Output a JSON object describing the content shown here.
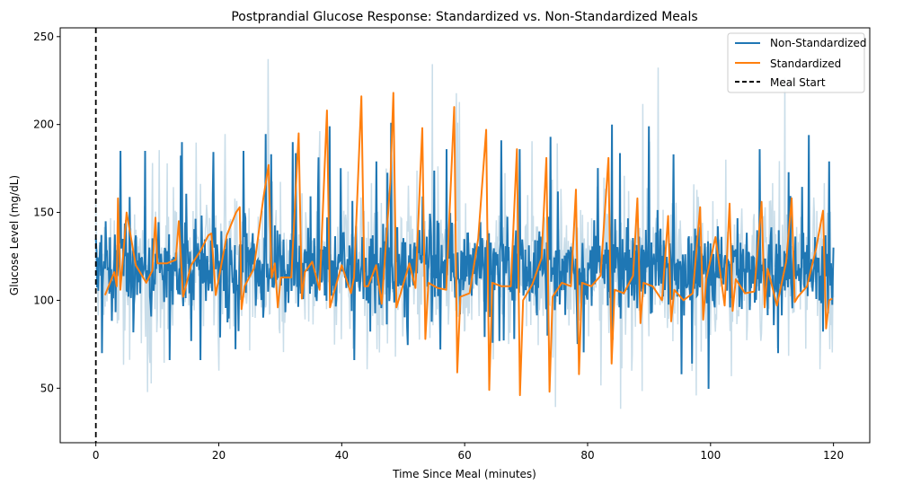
{
  "chart_data": {
    "type": "line",
    "title": "Postprandial Glucose Response: Standardized vs. Non-Standardized Meals",
    "xlabel": "Time Since Meal (minutes)",
    "ylabel": "Glucose Level (mg/dL)",
    "xlim": [
      -5.8,
      125.9
    ],
    "ylim": [
      19,
      255
    ],
    "xticks": [
      0,
      20,
      40,
      60,
      80,
      100,
      120
    ],
    "yticks": [
      50,
      100,
      150,
      200,
      250
    ],
    "legend_position": "top-right",
    "grid": false,
    "meal_start": {
      "name": "Meal Start",
      "x": 0,
      "color": "#000000",
      "dash": "dashed"
    },
    "series": [
      {
        "name": "Non-Standardized",
        "color": "#1f77b4",
        "light_color": "#c9dde9",
        "x_range": [
          0,
          120
        ],
        "sample_count": 1200,
        "typical_range": [
          88,
          150
        ],
        "spikes": [
          {
            "x": 4,
            "y": 185
          },
          {
            "x": 8,
            "y": 185
          },
          {
            "x": 14,
            "y": 190
          },
          {
            "x": 19,
            "y": 160
          },
          {
            "x": 24,
            "y": 185
          },
          {
            "x": 32,
            "y": 190
          },
          {
            "x": 38,
            "y": 199
          },
          {
            "x": 48,
            "y": 201
          },
          {
            "x": 57,
            "y": 186
          },
          {
            "x": 66,
            "y": 191
          },
          {
            "x": 69,
            "y": 186
          },
          {
            "x": 74,
            "y": 193
          },
          {
            "x": 84,
            "y": 200
          },
          {
            "x": 90,
            "y": 199
          },
          {
            "x": 94,
            "y": 183
          },
          {
            "x": 108,
            "y": 186
          },
          {
            "x": 116,
            "y": 194
          },
          {
            "x": 1,
            "y": 70
          },
          {
            "x": 12,
            "y": 66
          },
          {
            "x": 17,
            "y": 66
          },
          {
            "x": 42,
            "y": 66
          },
          {
            "x": 56,
            "y": 72
          },
          {
            "x": 97,
            "y": 64
          },
          {
            "x": 111,
            "y": 70
          }
        ]
      },
      {
        "name": "Standardized",
        "color": "#ff7f0e",
        "points": [
          [
            1.5,
            103
          ],
          [
            3.0,
            116
          ],
          [
            3.4,
            108
          ],
          [
            3.6,
            158
          ],
          [
            4.0,
            106
          ],
          [
            5.0,
            150
          ],
          [
            6.5,
            120
          ],
          [
            8.2,
            110
          ],
          [
            9.2,
            117
          ],
          [
            9.7,
            147
          ],
          [
            10.0,
            121
          ],
          [
            11.5,
            121
          ],
          [
            13.0,
            123
          ],
          [
            13.5,
            145
          ],
          [
            14.2,
            102
          ],
          [
            15.5,
            120
          ],
          [
            17.0,
            128
          ],
          [
            18.3,
            137
          ],
          [
            18.8,
            138
          ],
          [
            19.5,
            103
          ],
          [
            21.3,
            137
          ],
          [
            22.8,
            150
          ],
          [
            23.4,
            153
          ],
          [
            23.7,
            95
          ],
          [
            24.2,
            108
          ],
          [
            25.7,
            118
          ],
          [
            27.2,
            157
          ],
          [
            28.1,
            177
          ],
          [
            28.6,
            113
          ],
          [
            29.1,
            121
          ],
          [
            29.6,
            96
          ],
          [
            30.1,
            113
          ],
          [
            31.8,
            113
          ],
          [
            33.0,
            195
          ],
          [
            33.5,
            101
          ],
          [
            34.0,
            116
          ],
          [
            35.2,
            122
          ],
          [
            36.4,
            106
          ],
          [
            37.6,
            208
          ],
          [
            38.1,
            96
          ],
          [
            38.6,
            103
          ],
          [
            40.0,
            120
          ],
          [
            41.5,
            104
          ],
          [
            42.0,
            113
          ],
          [
            43.2,
            216
          ],
          [
            43.7,
            108
          ],
          [
            44.3,
            108
          ],
          [
            45.6,
            120
          ],
          [
            46.5,
            98
          ],
          [
            47.9,
            167
          ],
          [
            48.4,
            218
          ],
          [
            48.9,
            96
          ],
          [
            49.5,
            103
          ],
          [
            51.0,
            121
          ],
          [
            52.0,
            107
          ],
          [
            53.1,
            198
          ],
          [
            53.6,
            78
          ],
          [
            54.1,
            110
          ],
          [
            55.6,
            107
          ],
          [
            57.0,
            106
          ],
          [
            58.3,
            210
          ],
          [
            58.8,
            59
          ],
          [
            59.3,
            102
          ],
          [
            60.8,
            104
          ],
          [
            62.2,
            135
          ],
          [
            63.5,
            197
          ],
          [
            64.0,
            49
          ],
          [
            64.5,
            110
          ],
          [
            66.0,
            108
          ],
          [
            67.5,
            108
          ],
          [
            68.5,
            186
          ],
          [
            69.0,
            46
          ],
          [
            69.5,
            100
          ],
          [
            71.0,
            109
          ],
          [
            72.5,
            124
          ],
          [
            73.3,
            181
          ],
          [
            73.8,
            48
          ],
          [
            74.3,
            102
          ],
          [
            75.8,
            110
          ],
          [
            77.3,
            108
          ],
          [
            78.1,
            163
          ],
          [
            78.6,
            58
          ],
          [
            79.1,
            110
          ],
          [
            80.6,
            108
          ],
          [
            82.1,
            114
          ],
          [
            83.4,
            181
          ],
          [
            83.9,
            64
          ],
          [
            84.4,
            106
          ],
          [
            85.9,
            104
          ],
          [
            87.4,
            114
          ],
          [
            88.1,
            158
          ],
          [
            88.6,
            87
          ],
          [
            89.1,
            110
          ],
          [
            90.6,
            108
          ],
          [
            92.1,
            100
          ],
          [
            93.1,
            148
          ],
          [
            93.6,
            88
          ],
          [
            94.1,
            106
          ],
          [
            95.6,
            100
          ],
          [
            97.1,
            104
          ],
          [
            98.3,
            153
          ],
          [
            98.8,
            89
          ],
          [
            99.3,
            112
          ],
          [
            100.8,
            136
          ],
          [
            102.3,
            97
          ],
          [
            103.1,
            155
          ],
          [
            103.6,
            94
          ],
          [
            104.1,
            112
          ],
          [
            105.6,
            104
          ],
          [
            107.1,
            105
          ],
          [
            108.3,
            156
          ],
          [
            108.8,
            96
          ],
          [
            109.3,
            118
          ],
          [
            110.8,
            97
          ],
          [
            112.3,
            122
          ],
          [
            113.2,
            158
          ],
          [
            113.7,
            99
          ],
          [
            114.2,
            102
          ],
          [
            115.7,
            108
          ],
          [
            117.2,
            130
          ],
          [
            118.3,
            151
          ],
          [
            118.8,
            84
          ],
          [
            119.3,
            100
          ],
          [
            119.8,
            101
          ]
        ]
      }
    ]
  }
}
